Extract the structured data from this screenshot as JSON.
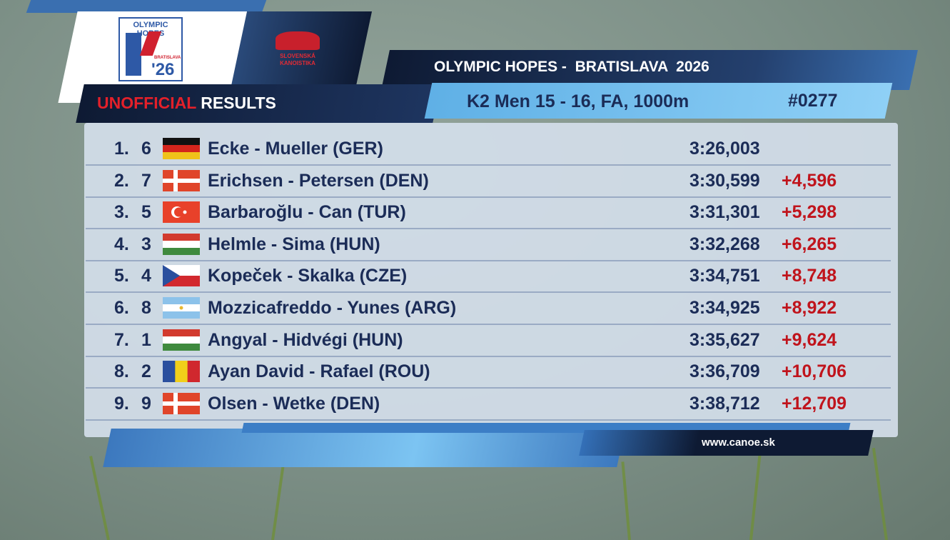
{
  "logos": {
    "event": {
      "name": "OLYMPIC HOPES",
      "city": "BRATISLAVA",
      "year": "'26"
    },
    "federation": {
      "line1": "SLOVENSKÁ",
      "line2": "KANOISTIKA"
    }
  },
  "header": {
    "status": "UNOFFICIAL",
    "label": "RESULTS",
    "event_title": "OLYMPIC HOPES -  BRATISLAVA  2026",
    "race": "K2 Men 15 - 16, FA, 1000m",
    "race_number": "#0277"
  },
  "results": [
    {
      "rank": "1.",
      "lane": "6",
      "crew": "Ecke - Mueller (GER)",
      "time": "3:26,003"
    },
    {
      "rank": "2.",
      "lane": "7",
      "crew": "Erichsen - Petersen (DEN)",
      "time": "3:30,599",
      "gap": "+4,596"
    },
    {
      "rank": "3.",
      "lane": "5",
      "crew": "Barbaroğlu - Can (TUR)",
      "time": "3:31,301",
      "gap": "+5,298"
    },
    {
      "rank": "4.",
      "lane": "3",
      "crew": "Helmle - Sima (HUN)",
      "time": "3:32,268",
      "gap": "+6,265"
    },
    {
      "rank": "5.",
      "lane": "4",
      "crew": "Kopeček - Skalka (CZE)",
      "time": "3:34,751",
      "gap": "+8,748"
    },
    {
      "rank": "6.",
      "lane": "8",
      "crew": "Mozzicafreddo - Yunes (ARG)",
      "time": "3:34,925",
      "gap": "+8,922"
    },
    {
      "rank": "7.",
      "lane": "1",
      "crew": "Angyal - Hidvégi (HUN)",
      "time": "3:35,627",
      "gap": "+9,624"
    },
    {
      "rank": "8.",
      "lane": "2",
      "crew": "Ayan David - Rafael (ROU)",
      "time": "3:36,709",
      "gap": "+10,706"
    },
    {
      "rank": "9.",
      "lane": "9",
      "crew": "Olsen - Wetke (DEN)",
      "time": "3:38,712",
      "gap": "+12,709"
    }
  ],
  "footer": {
    "url": "www.canoe.sk"
  }
}
